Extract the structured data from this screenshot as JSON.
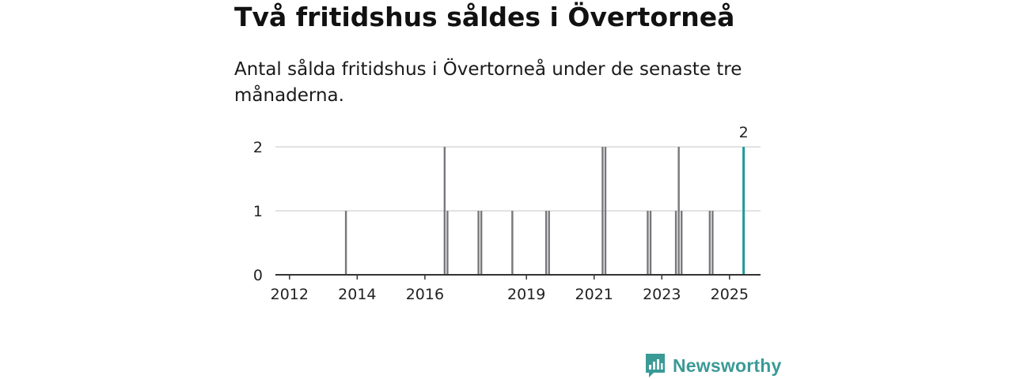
{
  "header": {
    "title": "Två fritidshus såldes i Övertorneå",
    "subtitle": "Antal sålda fritidshus i Övertorneå under de senaste tre månaderna."
  },
  "brand": {
    "name": "Newsworthy",
    "icon": "newsworthy-logo-icon",
    "color": "#3a9a96"
  },
  "chart_data": {
    "type": "bar",
    "title": "",
    "xlabel": "",
    "ylabel": "",
    "x_unit": "month",
    "ylim": [
      0,
      2
    ],
    "y_ticks": [
      0,
      1,
      2
    ],
    "grid": true,
    "x_range": [
      "2011-08",
      "2025-12"
    ],
    "x_ticks": [
      {
        "label": "2012",
        "date": "2012-01"
      },
      {
        "label": "2014",
        "date": "2014-01"
      },
      {
        "label": "2016",
        "date": "2016-01"
      },
      {
        "label": "2019",
        "date": "2019-01"
      },
      {
        "label": "2021",
        "date": "2021-01"
      },
      {
        "label": "2023",
        "date": "2023-01"
      },
      {
        "label": "2025",
        "date": "2025-01"
      }
    ],
    "series": [
      {
        "color": "#77777c",
        "points": [
          {
            "x": "2013-09",
            "y": 1
          },
          {
            "x": "2016-08",
            "y": 2
          },
          {
            "x": "2016-09",
            "y": 1
          },
          {
            "x": "2017-08",
            "y": 1
          },
          {
            "x": "2017-09",
            "y": 1
          },
          {
            "x": "2018-08",
            "y": 1
          },
          {
            "x": "2019-08",
            "y": 1
          },
          {
            "x": "2019-09",
            "y": 1
          },
          {
            "x": "2021-04",
            "y": 2
          },
          {
            "x": "2021-05",
            "y": 2
          },
          {
            "x": "2022-08",
            "y": 1
          },
          {
            "x": "2022-09",
            "y": 1
          },
          {
            "x": "2023-06",
            "y": 1
          },
          {
            "x": "2023-07",
            "y": 2
          },
          {
            "x": "2023-08",
            "y": 1
          },
          {
            "x": "2024-06",
            "y": 1
          },
          {
            "x": "2024-07",
            "y": 1
          }
        ]
      }
    ],
    "highlight": {
      "x": "2025-06",
      "y": 2,
      "label": "2",
      "color": "#1f9a99"
    }
  }
}
